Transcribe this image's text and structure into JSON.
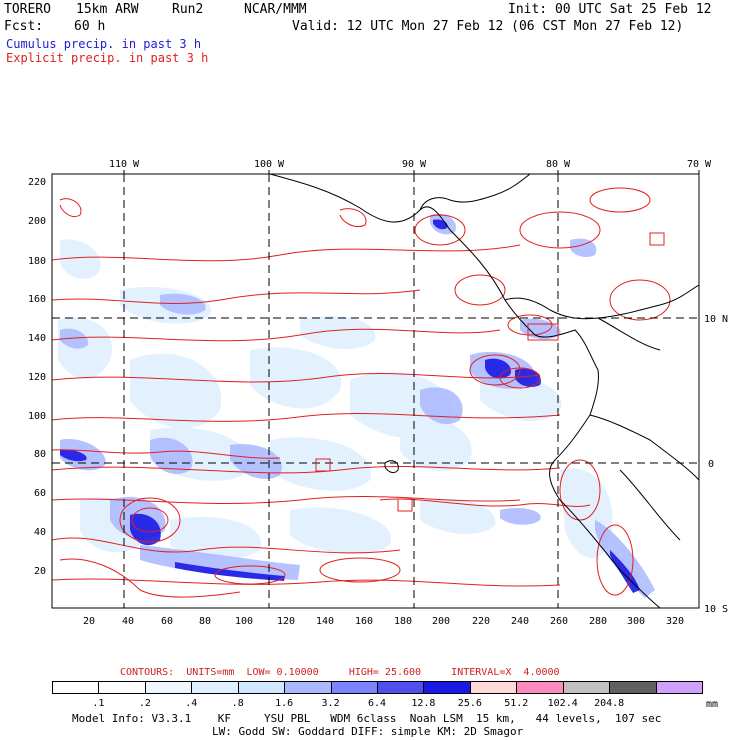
{
  "header": {
    "model": "TORERO",
    "resolution": "15km ARW",
    "run": "Run2",
    "org": "NCAR/MMM",
    "init": "Init: 00 UTC Sat 25 Feb 12",
    "fcst_label": "Fcst:",
    "fcst_value": "60 h",
    "valid": "Valid: 12 UTC Mon 27 Feb 12 (06 CST Mon 27 Feb 12)",
    "cumulus_label": "Cumulus precip. in past 3 h",
    "explicit_label": "Explicit precip. in past 3 h"
  },
  "colors": {
    "cumulus": "#2020d0",
    "explicit": "#e02020",
    "grid_line": "#000000"
  },
  "map": {
    "top_lon_labels": [
      "110 W",
      "100 W",
      "90 W",
      "80 W",
      "70 W"
    ],
    "right_lat_labels": [
      "10 N",
      "0",
      "10 S"
    ],
    "y_ticks": [
      "220",
      "200",
      "180",
      "160",
      "140",
      "120",
      "100",
      "80",
      "60",
      "40",
      "20"
    ],
    "x_ticks": [
      "20",
      "40",
      "60",
      "80",
      "100",
      "120",
      "140",
      "160",
      "180",
      "200",
      "220",
      "240",
      "260",
      "280",
      "300",
      "320"
    ]
  },
  "contours_line": {
    "label": "CONTOURS:",
    "units": "UNITS=mm",
    "low": "LOW= 0.10000",
    "high": "HIGH= 25.600",
    "interval": "INTERVAL=X  4.0000"
  },
  "colorbar": {
    "colors": [
      "#ffffff",
      "#ffffff",
      "#f0f8ff",
      "#e0f0ff",
      "#d0e8ff",
      "#aab8ff",
      "#7a85ff",
      "#5050ee",
      "#1a1ae6",
      "#ffd8d8",
      "#ff8ac0",
      "#c0c0c0",
      "#606060",
      "#d0a0ff"
    ],
    "labels": [
      ".1",
      ".2",
      ".4",
      ".8",
      "1.6",
      "3.2",
      "6.4",
      "12.8",
      "25.6",
      "51.2",
      "102.4",
      "204.8"
    ],
    "unit": "mm"
  },
  "model_info": {
    "line1": "Model Info: V3.3.1    KF     YSU PBL   WDM 6class  Noah LSM  15 km,   44 levels,  107 sec",
    "line2": "LW: Godd SW: Goddard DIFF: simple KM: 2D Smagor"
  }
}
